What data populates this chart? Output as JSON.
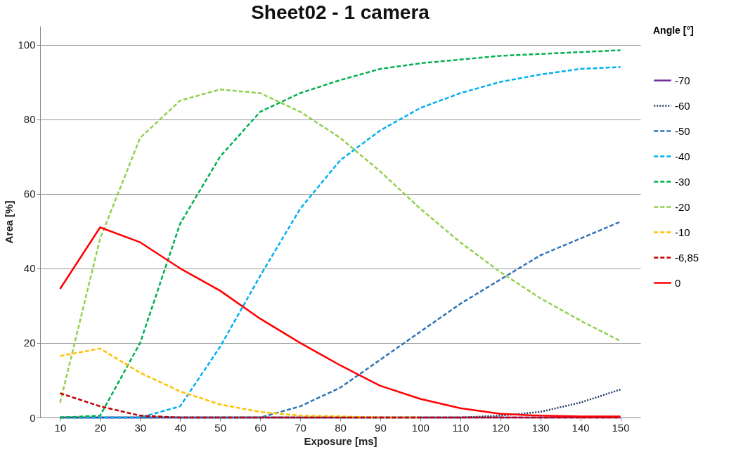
{
  "chart_data": {
    "type": "line",
    "title": "Sheet02 - 1 camera",
    "xlabel": "Exposure [ms]",
    "ylabel": "Area [%]",
    "legend_title": "Angle [°]",
    "x": [
      10,
      20,
      30,
      40,
      50,
      60,
      70,
      80,
      90,
      100,
      110,
      120,
      130,
      140,
      150
    ],
    "xlim": [
      5,
      155
    ],
    "xticks": [
      10,
      20,
      30,
      40,
      50,
      60,
      70,
      80,
      90,
      100,
      110,
      120,
      130,
      140,
      150
    ],
    "ylim": [
      0,
      105
    ],
    "yticks": [
      0,
      20,
      40,
      60,
      80,
      100
    ],
    "grid": "y",
    "legend": "right",
    "marker": "none",
    "series": [
      {
        "name": "-70",
        "color": "#7030a0",
        "line_style": "solid",
        "values": [
          0,
          0,
          0,
          0,
          0,
          0,
          0,
          0,
          0,
          0,
          0,
          0,
          0,
          0,
          0
        ]
      },
      {
        "name": "-60",
        "color": "#1f3864",
        "line_style": "dotted",
        "values": [
          0,
          0,
          0,
          0,
          0,
          0,
          0,
          0,
          0,
          0,
          0,
          0.5,
          1.5,
          4,
          7.5
        ]
      },
      {
        "name": "-50",
        "color": "#2e75b6",
        "line_style": "dashed",
        "values": [
          0,
          0,
          0,
          0,
          0,
          0,
          3,
          8,
          15.5,
          23,
          30.5,
          37,
          43.5,
          48,
          52.5
        ]
      },
      {
        "name": "-40",
        "color": "#00b0f0",
        "line_style": "dashed",
        "values": [
          0,
          0,
          0,
          3,
          19,
          38,
          56,
          69,
          77,
          83,
          87,
          90,
          92,
          93.5,
          94
        ]
      },
      {
        "name": "-30",
        "color": "#00b050",
        "line_style": "dashed",
        "values": [
          0,
          0.5,
          20,
          52,
          70,
          82,
          87,
          90.5,
          93.5,
          95,
          96,
          97,
          97.5,
          98,
          98.5
        ]
      },
      {
        "name": "-20",
        "color": "#92d050",
        "line_style": "dashed",
        "values": [
          4,
          48,
          75,
          85,
          88,
          87,
          82,
          75,
          66,
          56,
          47,
          39,
          32,
          26,
          20.5
        ]
      },
      {
        "name": "-10",
        "color": "#ffc000",
        "line_style": "dashed",
        "values": [
          16.5,
          18.5,
          12,
          7,
          3.5,
          1.5,
          0.5,
          0.3,
          0,
          0,
          null,
          null,
          null,
          null,
          null
        ]
      },
      {
        "name": "-6,85",
        "color": "#c00000",
        "line_style": "dashed",
        "values": [
          6.5,
          3,
          0.5,
          0,
          0,
          0,
          0,
          0,
          0,
          0,
          0,
          0,
          0,
          0,
          0
        ]
      },
      {
        "name": "0",
        "color": "#ff0000",
        "line_style": "solid",
        "values": [
          34.5,
          51,
          47,
          40,
          34,
          26.5,
          20,
          14,
          8.5,
          5,
          2.5,
          1,
          0.5,
          0.3,
          0.3
        ]
      }
    ]
  }
}
